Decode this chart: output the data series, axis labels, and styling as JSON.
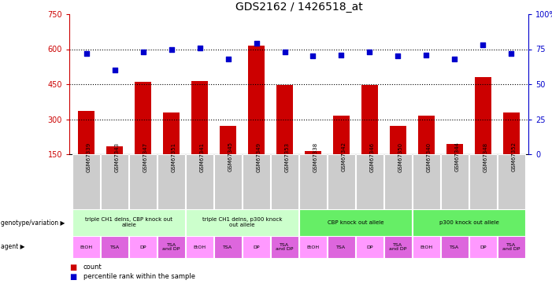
{
  "title": "GDS2162 / 1426518_at",
  "samples": [
    "GSM67339",
    "GSM67343",
    "GSM67347",
    "GSM67351",
    "GSM67341",
    "GSM67345",
    "GSM67349",
    "GSM67353",
    "GSM67338",
    "GSM67342",
    "GSM67346",
    "GSM67350",
    "GSM67340",
    "GSM67344",
    "GSM67348",
    "GSM67352"
  ],
  "counts": [
    335,
    185,
    460,
    330,
    465,
    270,
    615,
    445,
    165,
    315,
    445,
    270,
    315,
    195,
    480,
    330
  ],
  "percentiles": [
    72,
    60,
    73,
    75,
    76,
    68,
    79,
    73,
    70,
    71,
    73,
    70,
    71,
    68,
    78,
    72
  ],
  "ylim_left": [
    150,
    750
  ],
  "ylim_right": [
    0,
    100
  ],
  "yticks_left": [
    150,
    300,
    450,
    600,
    750
  ],
  "yticks_right": [
    0,
    25,
    50,
    75,
    100
  ],
  "hlines": [
    300,
    450,
    600
  ],
  "bar_color": "#cc0000",
  "scatter_color": "#0000cc",
  "genotype_groups": [
    {
      "label": "triple CH1 delns, CBP knock out\nallele",
      "start": 0,
      "end": 4,
      "color": "#ccffcc"
    },
    {
      "label": "triple CH1 delns, p300 knock\nout allele",
      "start": 4,
      "end": 8,
      "color": "#ccffcc"
    },
    {
      "label": "CBP knock out allele",
      "start": 8,
      "end": 12,
      "color": "#66ee66"
    },
    {
      "label": "p300 knock out allele",
      "start": 12,
      "end": 16,
      "color": "#66ee66"
    }
  ],
  "agent_labels": [
    "EtOH",
    "TSA",
    "DP",
    "TSA\nand DP",
    "EtOH",
    "TSA",
    "DP",
    "TSA\nand DP",
    "EtOH",
    "TSA",
    "DP",
    "TSA\nand DP",
    "EtOH",
    "TSA",
    "DP",
    "TSA\nand DP"
  ],
  "agent_colors": [
    "#ff99ff",
    "#dd66dd",
    "#ff99ff",
    "#dd66dd",
    "#ff99ff",
    "#dd66dd",
    "#ff99ff",
    "#dd66dd",
    "#ff99ff",
    "#dd66dd",
    "#ff99ff",
    "#dd66dd",
    "#ff99ff",
    "#dd66dd",
    "#ff99ff",
    "#dd66dd"
  ],
  "right_axis_color": "#0000cc",
  "left_axis_color": "#cc0000",
  "sample_bg_color": "#cccccc"
}
